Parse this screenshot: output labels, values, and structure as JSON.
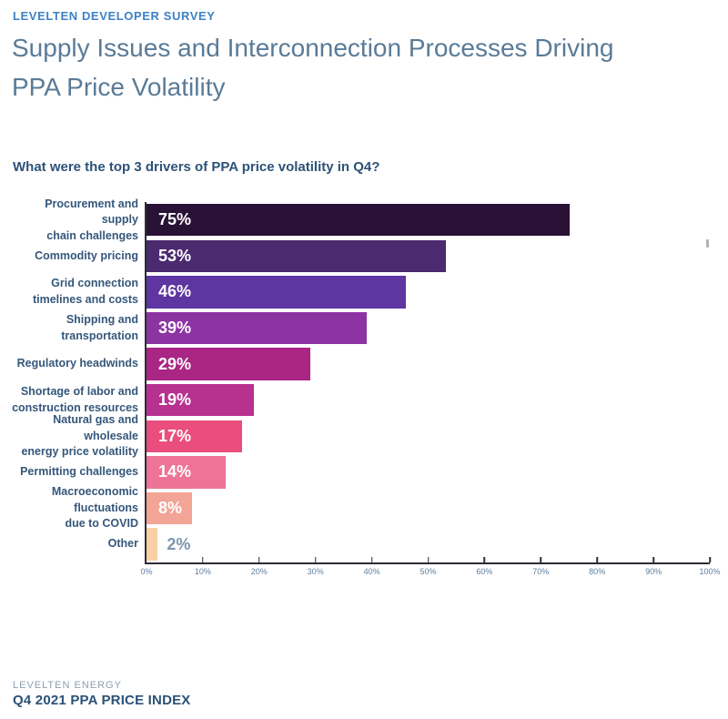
{
  "header": {
    "eyebrow": "LEVELTEN DEVELOPER SURVEY",
    "title_lines": {
      "line1": "Supply Issues and Interconnection Processes Driving",
      "line2": "PPA Price Volatility"
    }
  },
  "question": "What were the top 3 drivers of PPA price volatility in Q4?",
  "chart_data": {
    "type": "bar",
    "orientation": "horizontal",
    "title": "What were the top 3 drivers of PPA price volatility in Q4?",
    "categories": [
      "Procurement and supply chain challenges",
      "Commodity pricing",
      "Grid connection timelines and costs",
      "Shipping and transportation",
      "Regulatory headwinds",
      "Shortage of labor and construction resources",
      "Natural gas and wholesale energy price volatility",
      "Permitting challenges",
      "Macroeconomic fluctuations due to COVID",
      "Other"
    ],
    "category_display_lines": [
      [
        "Procurement and supply",
        "chain challenges"
      ],
      [
        "Commodity pricing"
      ],
      [
        "Grid connection",
        "timelines and costs"
      ],
      [
        "Shipping and",
        "transportation"
      ],
      [
        "Regulatory headwinds"
      ],
      [
        "Shortage of labor and",
        "construction resources"
      ],
      [
        "Natural gas and wholesale",
        "energy price volatility"
      ],
      [
        "Permitting challenges"
      ],
      [
        "Macroeconomic",
        "fluctuations",
        "due to COVID"
      ],
      [
        "Other"
      ]
    ],
    "values": [
      75,
      53,
      46,
      39,
      29,
      19,
      17,
      14,
      8,
      2
    ],
    "value_labels": [
      "75%",
      "53%",
      "46%",
      "39%",
      "29%",
      "19%",
      "17%",
      "14%",
      "8%",
      "2%"
    ],
    "bar_colors": [
      "#2a1136",
      "#4b2a70",
      "#5e35a1",
      "#8d34a3",
      "#a92684",
      "#b73190",
      "#e94e7e",
      "#ee7396",
      "#f2a597",
      "#f9d0a4"
    ],
    "xlabel": "",
    "ylabel": "",
    "xlim": [
      0,
      100
    ],
    "x_ticks": [
      "0%",
      "10%",
      "20%",
      "30%",
      "40%",
      "50%",
      "60%",
      "70%",
      "80%",
      "90%",
      "100%"
    ],
    "grid": false,
    "legend": false,
    "outside_label_threshold": 5
  },
  "footer": {
    "brand": "LEVELTEN ENERGY",
    "report": "Q4 2021 PPA PRICE INDEX"
  },
  "colors": {
    "eyebrow_blue": "#3d82c4",
    "title_slate": "#5a7b97",
    "question_navy": "#2d5278",
    "category_label": "#35577b",
    "axis_line": "#2c2c34",
    "tick_label": "#5e7ea1",
    "value_label_inside": "#ffffff",
    "value_label_outside": "#7d96ae",
    "footer_brand": "#8d9fb1",
    "footer_report": "#2b5176",
    "background": "#ffffff"
  }
}
